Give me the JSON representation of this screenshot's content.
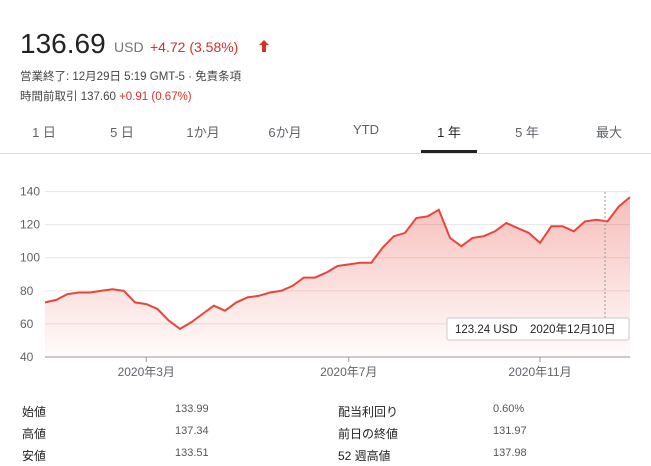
{
  "header": {
    "price": "136.69",
    "currency": "USD",
    "change": "+4.72 (3.58%)",
    "status": "営業終了: 12月29日 5:19 GMT-5 · 免責条項",
    "premarket_label": "時間前取引 137.60",
    "premarket_change": "+0.91 (0.67%)"
  },
  "tabs": [
    "1 日",
    "5 日",
    "1か月",
    "6か月",
    "YTD",
    "1 年",
    "5 年",
    "最大"
  ],
  "active_tab": "1 年",
  "chart_data": {
    "type": "line",
    "categories": [
      null,
      null,
      null,
      null,
      null,
      null,
      null,
      null,
      null,
      "2020年3月",
      null,
      null,
      null,
      null,
      null,
      null,
      null,
      null,
      null,
      null,
      null,
      null,
      null,
      null,
      null,
      null,
      null,
      "2020年7月",
      null,
      null,
      null,
      null,
      null,
      null,
      null,
      null,
      null,
      null,
      null,
      null,
      null,
      null,
      null,
      null,
      "2020年11月",
      null,
      null,
      null,
      null,
      null,
      null,
      null,
      null
    ],
    "series": [
      {
        "name": "Price",
        "color": "#e8463a",
        "values": [
          73,
          74.5,
          78,
          79,
          79,
          80,
          81,
          80,
          73,
          72,
          69,
          62,
          57,
          61,
          66,
          71,
          68,
          73,
          76,
          77,
          79,
          80,
          83,
          88,
          88,
          91,
          95,
          96,
          97,
          97,
          106,
          113,
          115,
          124,
          125,
          129,
          112,
          107,
          112,
          113,
          116,
          121,
          118,
          115,
          109,
          119,
          119,
          116,
          122,
          123,
          122,
          131,
          136.69
        ]
      }
    ],
    "ylim": [
      40,
      147
    ],
    "yticks": [
      40,
      60,
      80,
      100,
      120,
      140
    ],
    "grid": true,
    "tooltip": {
      "value": "123.24 USD",
      "date": "2020年12月10日"
    }
  },
  "stats": {
    "rows": [
      [
        "始値",
        "133.99",
        "配当利回り",
        "0.60%"
      ],
      [
        "高値",
        "137.34",
        "前日の終値",
        "131.97"
      ],
      [
        "安値",
        "133.51",
        "52 週高値",
        "137.98"
      ]
    ]
  }
}
